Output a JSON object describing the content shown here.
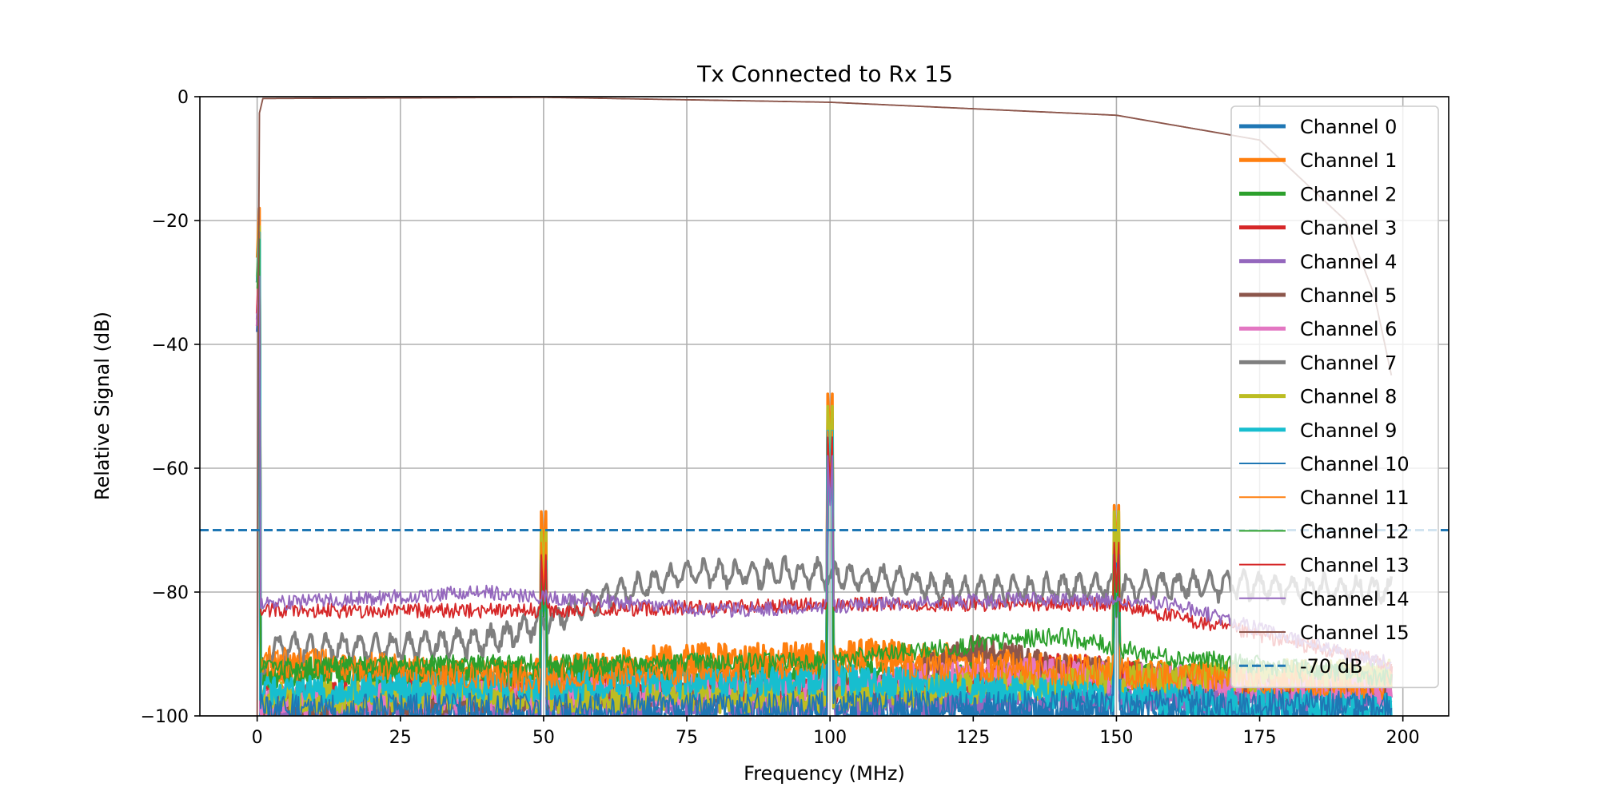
{
  "chart_data": {
    "type": "line",
    "title": "Tx Connected to Rx 15",
    "xlabel": "Frequency (MHz)",
    "ylabel": "Relative Signal (dB)",
    "xlim": [
      -10,
      208
    ],
    "ylim": [
      -100,
      0
    ],
    "xticks": [
      0,
      25,
      50,
      75,
      100,
      125,
      150,
      175,
      200
    ],
    "yticks": [
      0,
      -20,
      -40,
      -60,
      -80,
      -100
    ],
    "xtick_labels": [
      "0",
      "25",
      "50",
      "75",
      "100",
      "125",
      "150",
      "175",
      "200"
    ],
    "ytick_labels": [
      "0",
      "−20",
      "−40",
      "−60",
      "−80",
      "−100"
    ],
    "grid": true,
    "legend_position": "upper right",
    "threshold": {
      "name": "-70 dB",
      "value": -70,
      "color": "#1f77b4"
    },
    "series": [
      {
        "name": "Channel 0",
        "color": "#1f77b4",
        "width": "thick",
        "base": [
          [
            0,
            -100
          ],
          [
            200,
            -100
          ]
        ],
        "noise": 3,
        "peaks": [
          [
            0,
            -36
          ],
          [
            50,
            -78
          ],
          [
            100,
            -62
          ],
          [
            150,
            -79
          ]
        ]
      },
      {
        "name": "Channel 1",
        "color": "#ff7f0e",
        "width": "thick",
        "base": [
          [
            0,
            -92
          ],
          [
            40,
            -94
          ],
          [
            70,
            -91
          ],
          [
            110,
            -90
          ],
          [
            150,
            -93
          ],
          [
            200,
            -96
          ]
        ],
        "noise": 2.5,
        "peaks": [
          [
            0,
            -26
          ],
          [
            50,
            -75
          ],
          [
            100,
            -56
          ],
          [
            150,
            -74
          ]
        ]
      },
      {
        "name": "Channel 2",
        "color": "#2ca02c",
        "width": "thick",
        "base": [
          [
            0,
            -93
          ],
          [
            200,
            -94
          ]
        ],
        "noise": 2.5,
        "peaks": [
          [
            0,
            -30
          ],
          [
            50,
            -85
          ],
          [
            100,
            -62
          ],
          [
            150,
            -84
          ]
        ]
      },
      {
        "name": "Channel 3",
        "color": "#d62728",
        "width": "thick",
        "base": [
          [
            0,
            -97
          ],
          [
            120,
            -96
          ],
          [
            140,
            -92
          ],
          [
            170,
            -96
          ],
          [
            200,
            -94
          ]
        ],
        "noise": 2.5,
        "peaks": [
          [
            0,
            -35
          ],
          [
            50,
            -82
          ],
          [
            100,
            -60
          ],
          [
            150,
            -82
          ]
        ]
      },
      {
        "name": "Channel 4",
        "color": "#9467bd",
        "width": "thick",
        "base": [
          [
            0,
            -99
          ],
          [
            200,
            -97
          ]
        ],
        "noise": 2,
        "peaks": [
          [
            0,
            -38
          ],
          [
            50,
            -82
          ],
          [
            100,
            -64
          ],
          [
            150,
            -83
          ]
        ]
      },
      {
        "name": "Channel 5",
        "color": "#8c564b",
        "width": "thick",
        "base": [
          [
            0,
            -99
          ],
          [
            110,
            -95
          ],
          [
            125,
            -89
          ],
          [
            140,
            -92
          ],
          [
            160,
            -94
          ],
          [
            200,
            -95
          ]
        ],
        "noise": 2,
        "peaks": [
          [
            0,
            -37
          ],
          [
            50,
            -84
          ],
          [
            100,
            -63
          ],
          [
            150,
            -84
          ]
        ]
      },
      {
        "name": "Channel 6",
        "color": "#e377c2",
        "width": "thick",
        "base": [
          [
            0,
            -98
          ],
          [
            100,
            -95
          ],
          [
            130,
            -93
          ],
          [
            200,
            -96
          ]
        ],
        "noise": 2.5,
        "peaks": [
          [
            0,
            -37
          ],
          [
            50,
            -84
          ],
          [
            100,
            -64
          ],
          [
            150,
            -84
          ]
        ]
      },
      {
        "name": "Channel 7",
        "color": "#7f7f7f",
        "width": "thick",
        "base": [
          [
            0,
            -100
          ],
          [
            2,
            -89
          ],
          [
            20,
            -89
          ],
          [
            40,
            -88
          ],
          [
            50,
            -85
          ],
          [
            60,
            -81
          ],
          [
            75,
            -77
          ],
          [
            100,
            -77
          ],
          [
            125,
            -80
          ],
          [
            150,
            -79
          ],
          [
            175,
            -79
          ],
          [
            200,
            -80
          ]
        ],
        "noise": 1,
        "ripple": 1.8,
        "peaks": [
          [
            0,
            -30
          ]
        ]
      },
      {
        "name": "Channel 8",
        "color": "#bcbd22",
        "width": "thick",
        "base": [
          [
            0,
            -97
          ],
          [
            100,
            -97
          ],
          [
            150,
            -94
          ],
          [
            200,
            -93
          ]
        ],
        "noise": 2.5,
        "peaks": [
          [
            0,
            -29
          ],
          [
            50,
            -78
          ],
          [
            100,
            -58
          ],
          [
            150,
            -75
          ]
        ]
      },
      {
        "name": "Channel 9",
        "color": "#17becf",
        "width": "thick",
        "base": [
          [
            0,
            -96
          ],
          [
            60,
            -95
          ],
          [
            100,
            -94
          ],
          [
            150,
            -97
          ],
          [
            200,
            -99
          ]
        ],
        "noise": 2.5,
        "peaks": [
          [
            0,
            -30
          ],
          [
            50,
            -83
          ],
          [
            100,
            -62
          ],
          [
            150,
            -82
          ]
        ]
      },
      {
        "name": "Channel 10",
        "color": "#1f77b4",
        "width": "thin",
        "base": [
          [
            0,
            -99
          ],
          [
            200,
            -98
          ]
        ],
        "noise": 2.5,
        "peaks": [
          [
            0,
            -38
          ],
          [
            50,
            -84
          ],
          [
            100,
            -64
          ],
          [
            150,
            -84
          ]
        ]
      },
      {
        "name": "Channel 11",
        "color": "#ff7f0e",
        "width": "thin",
        "base": [
          [
            0,
            -91
          ],
          [
            50,
            -94
          ],
          [
            100,
            -91
          ],
          [
            150,
            -93
          ],
          [
            200,
            -95
          ]
        ],
        "noise": 2.5,
        "peaks": [
          [
            0,
            -30
          ],
          [
            50,
            -80
          ],
          [
            100,
            -62
          ],
          [
            150,
            -80
          ]
        ]
      },
      {
        "name": "Channel 12",
        "color": "#2ca02c",
        "width": "thin",
        "base": [
          [
            0,
            -92
          ],
          [
            100,
            -91
          ],
          [
            140,
            -87
          ],
          [
            155,
            -90
          ],
          [
            200,
            -94
          ]
        ],
        "noise": 1.5,
        "peaks": [
          [
            0,
            -31
          ],
          [
            50,
            -84
          ],
          [
            100,
            -63
          ],
          [
            150,
            -84
          ]
        ]
      },
      {
        "name": "Channel 13",
        "color": "#d62728",
        "width": "thin",
        "base": [
          [
            0,
            -83
          ],
          [
            50,
            -83
          ],
          [
            100,
            -82
          ],
          [
            150,
            -82
          ],
          [
            170,
            -86
          ],
          [
            200,
            -92
          ]
        ],
        "noise": 1.2,
        "peaks": [
          [
            0,
            -37
          ],
          [
            50,
            -82
          ],
          [
            100,
            -63
          ],
          [
            150,
            -80
          ]
        ]
      },
      {
        "name": "Channel 14",
        "color": "#9467bd",
        "width": "thin",
        "base": [
          [
            0,
            -82
          ],
          [
            40,
            -80
          ],
          [
            80,
            -83
          ],
          [
            140,
            -81
          ],
          [
            160,
            -82
          ],
          [
            190,
            -90
          ],
          [
            200,
            -92
          ]
        ],
        "noise": 1.2,
        "peaks": [
          [
            0,
            -37
          ],
          [
            100,
            -66
          ]
        ]
      },
      {
        "name": "Channel 15",
        "color": "#8c564b",
        "width": "thin",
        "base": [
          [
            0,
            -100
          ],
          [
            0.3,
            -3
          ],
          [
            1,
            -0.3
          ],
          [
            50,
            -0.1
          ],
          [
            100,
            -0.9
          ],
          [
            150,
            -3
          ],
          [
            175,
            -7
          ],
          [
            190,
            -20
          ],
          [
            195,
            -32
          ],
          [
            198,
            -45
          ]
        ],
        "noise": 0,
        "peaks": []
      }
    ]
  }
}
